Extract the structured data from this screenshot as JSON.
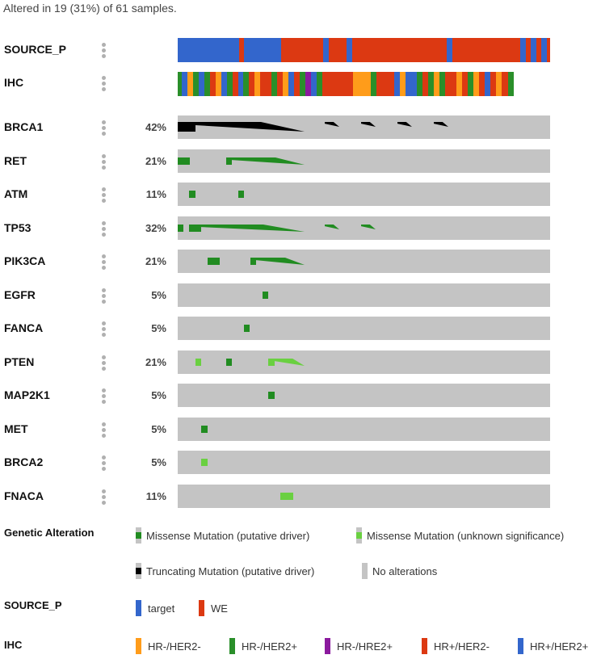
{
  "header": {
    "summary": "Altered in 19 (31%) of 61 samples."
  },
  "colors": {
    "bg": "#c4c4c4",
    "missense_driver": "#218c21",
    "missense_unknown": "#6ad041",
    "truncating": "#000000",
    "target": "#3366cc",
    "we": "#dc3912",
    "hrneg_her2neg": "#ff9c1a",
    "hrneg_her2pos": "#2a8f2a",
    "hrneg_hre2pos": "#8b1a9e",
    "hrpos_her2neg": "#dc3912",
    "hrpos_her2pos": "#3366cc"
  },
  "clinical_tracks": [
    {
      "label": "SOURCE_P"
    },
    {
      "label": "IHC"
    }
  ],
  "gene_tracks": [
    {
      "gene": "BRCA1",
      "pct": "42%"
    },
    {
      "gene": "RET",
      "pct": "21%"
    },
    {
      "gene": "ATM",
      "pct": "11%"
    },
    {
      "gene": "TP53",
      "pct": "32%"
    },
    {
      "gene": "PIK3CA",
      "pct": "21%"
    },
    {
      "gene": "EGFR",
      "pct": "5%"
    },
    {
      "gene": "FANCA",
      "pct": "5%"
    },
    {
      "gene": "PTEN",
      "pct": "21%"
    },
    {
      "gene": "MAP2K1",
      "pct": "5%"
    },
    {
      "gene": "MET",
      "pct": "5%"
    },
    {
      "gene": "BRCA2",
      "pct": "5%"
    },
    {
      "gene": "FNACA",
      "pct": "11%"
    }
  ],
  "legend": {
    "genetic": {
      "title": "Genetic Alteration",
      "missense_driver": "Missense Mutation (putative driver)",
      "missense_unknown": "Missense Mutation (unknown significance)",
      "truncating": "Truncating Mutation (putative driver)",
      "no_alt": "No alterations"
    },
    "source": {
      "title": "SOURCE_P",
      "target": "target",
      "we": "WE"
    },
    "ihc": {
      "title": "IHC",
      "hrneg_her2neg": "HR-/HER2-",
      "hrneg_her2pos": "HR-/HER2+",
      "hrneg_hre2pos": "HR-/HRE2+",
      "hrpos_her2neg": "HR+/HER2-",
      "hrpos_her2pos": "HR+/HER2+"
    }
  }
}
